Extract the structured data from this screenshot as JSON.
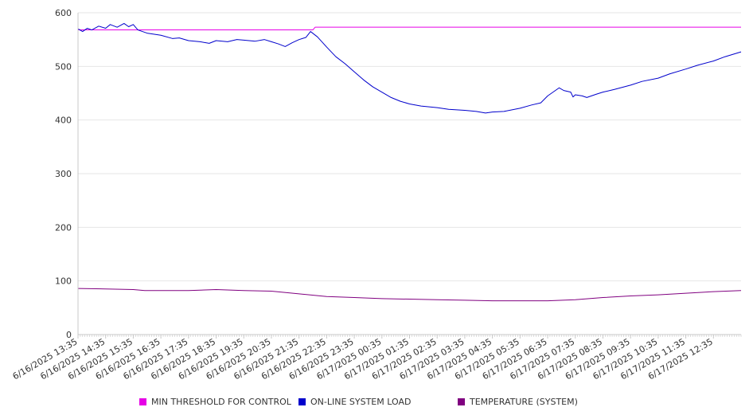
{
  "chart_data": {
    "type": "line",
    "title": "",
    "xlabel": "",
    "ylabel": "",
    "ylim": [
      0,
      600
    ],
    "yticks": [
      0,
      100,
      200,
      300,
      400,
      500,
      600
    ],
    "grid": true,
    "legend_position": "bottom",
    "x_start": "6/16/2025 13:35",
    "x_end": "6/17/2025 13:35",
    "x_tick_labels": [
      "6/16/2025 13:35",
      "6/16/2025 14:35",
      "6/16/2025 15:35",
      "6/16/2025 16:35",
      "6/16/2025 17:35",
      "6/16/2025 18:35",
      "6/16/2025 19:35",
      "6/16/2025 20:35",
      "6/16/2025 21:35",
      "6/16/2025 22:35",
      "6/16/2025 23:35",
      "6/17/2025 00:35",
      "6/17/2025 01:35",
      "6/17/2025 02:35",
      "6/17/2025 03:35",
      "6/17/2025 04:35",
      "6/17/2025 05:35",
      "6/17/2025 06:35",
      "6/17/2025 07:35",
      "6/17/2025 08:35",
      "6/17/2025 09:35",
      "6/17/2025 10:35",
      "6/17/2025 11:35",
      "6/17/2025 12:35"
    ],
    "series": [
      {
        "name": "MIN THRESHOLD FOR CONTROL",
        "color": "#e600e6",
        "points": [
          [
            "6/16/2025 13:35",
            568
          ],
          [
            "6/16/2025 22:05",
            568
          ],
          [
            "6/16/2025 22:10",
            573
          ],
          [
            "6/17/2025 13:35",
            573
          ]
        ]
      },
      {
        "name": "ON-LINE SYSTEM LOAD",
        "color": "#0000cc",
        "points": [
          [
            "6/16/2025 13:35",
            570
          ],
          [
            "6/16/2025 13:45",
            565
          ],
          [
            "6/16/2025 13:55",
            571
          ],
          [
            "6/16/2025 14:05",
            568
          ],
          [
            "6/16/2025 14:20",
            575
          ],
          [
            "6/16/2025 14:35",
            571
          ],
          [
            "6/16/2025 14:45",
            578
          ],
          [
            "6/16/2025 15:00",
            573
          ],
          [
            "6/16/2025 15:15",
            580
          ],
          [
            "6/16/2025 15:25",
            574
          ],
          [
            "6/16/2025 15:35",
            578
          ],
          [
            "6/16/2025 15:45",
            568
          ],
          [
            "6/16/2025 16:05",
            562
          ],
          [
            "6/16/2025 16:35",
            558
          ],
          [
            "6/16/2025 17:00",
            552
          ],
          [
            "6/16/2025 17:15",
            553
          ],
          [
            "6/16/2025 17:35",
            548
          ],
          [
            "6/16/2025 18:00",
            546
          ],
          [
            "6/16/2025 18:20",
            543
          ],
          [
            "6/16/2025 18:35",
            548
          ],
          [
            "6/16/2025 19:00",
            546
          ],
          [
            "6/16/2025 19:20",
            550
          ],
          [
            "6/16/2025 19:35",
            549
          ],
          [
            "6/16/2025 20:00",
            547
          ],
          [
            "6/16/2025 20:20",
            550
          ],
          [
            "6/16/2025 20:35",
            546
          ],
          [
            "6/16/2025 20:50",
            542
          ],
          [
            "6/16/2025 21:05",
            537
          ],
          [
            "6/16/2025 21:20",
            544
          ],
          [
            "6/16/2025 21:35",
            550
          ],
          [
            "6/16/2025 21:50",
            554
          ],
          [
            "6/16/2025 22:00",
            565
          ],
          [
            "6/16/2025 22:15",
            555
          ],
          [
            "6/16/2025 22:35",
            536
          ],
          [
            "6/16/2025 22:55",
            518
          ],
          [
            "6/16/2025 23:15",
            505
          ],
          [
            "6/16/2025 23:35",
            490
          ],
          [
            "6/16/2025 23:55",
            475
          ],
          [
            "6/17/2025 00:15",
            462
          ],
          [
            "6/17/2025 00:35",
            452
          ],
          [
            "6/17/2025 00:55",
            442
          ],
          [
            "6/17/2025 01:15",
            435
          ],
          [
            "6/17/2025 01:35",
            430
          ],
          [
            "6/17/2025 02:00",
            426
          ],
          [
            "6/17/2025 02:35",
            423
          ],
          [
            "6/17/2025 03:00",
            420
          ],
          [
            "6/17/2025 03:35",
            418
          ],
          [
            "6/17/2025 04:00",
            416
          ],
          [
            "6/17/2025 04:20",
            413
          ],
          [
            "6/17/2025 04:35",
            415
          ],
          [
            "6/17/2025 05:00",
            416
          ],
          [
            "6/17/2025 05:35",
            422
          ],
          [
            "6/17/2025 06:00",
            428
          ],
          [
            "6/17/2025 06:20",
            432
          ],
          [
            "6/17/2025 06:35",
            445
          ],
          [
            "6/17/2025 07:00",
            460
          ],
          [
            "6/17/2025 07:10",
            455
          ],
          [
            "6/17/2025 07:25",
            452
          ],
          [
            "6/17/2025 07:30",
            443
          ],
          [
            "6/17/2025 07:35",
            447
          ],
          [
            "6/17/2025 07:50",
            445
          ],
          [
            "6/17/2025 08:00",
            442
          ],
          [
            "6/17/2025 08:20",
            448
          ],
          [
            "6/17/2025 08:35",
            452
          ],
          [
            "6/17/2025 09:00",
            457
          ],
          [
            "6/17/2025 09:35",
            465
          ],
          [
            "6/17/2025 10:00",
            472
          ],
          [
            "6/17/2025 10:35",
            478
          ],
          [
            "6/17/2025 11:00",
            486
          ],
          [
            "6/17/2025 11:35",
            495
          ],
          [
            "6/17/2025 12:00",
            502
          ],
          [
            "6/17/2025 12:35",
            510
          ],
          [
            "6/17/2025 13:00",
            518
          ],
          [
            "6/17/2025 13:35",
            527
          ]
        ]
      },
      {
        "name": "TEMPERATURE (SYSTEM)",
        "color": "#800080",
        "points": [
          [
            "6/16/2025 13:35",
            86
          ],
          [
            "6/16/2025 14:35",
            85
          ],
          [
            "6/16/2025 15:35",
            84
          ],
          [
            "6/16/2025 16:00",
            82
          ],
          [
            "6/16/2025 17:35",
            82
          ],
          [
            "6/16/2025 18:35",
            84
          ],
          [
            "6/16/2025 19:35",
            82
          ],
          [
            "6/16/2025 20:35",
            81
          ],
          [
            "6/16/2025 21:35",
            76
          ],
          [
            "6/16/2025 22:35",
            71
          ],
          [
            "6/16/2025 23:35",
            69
          ],
          [
            "6/17/2025 00:35",
            67
          ],
          [
            "6/17/2025 01:35",
            66
          ],
          [
            "6/17/2025 02:35",
            65
          ],
          [
            "6/17/2025 03:35",
            64
          ],
          [
            "6/17/2025 04:35",
            63
          ],
          [
            "6/17/2025 05:35",
            63
          ],
          [
            "6/17/2025 06:35",
            63
          ],
          [
            "6/17/2025 07:35",
            65
          ],
          [
            "6/17/2025 08:35",
            69
          ],
          [
            "6/17/2025 09:35",
            72
          ],
          [
            "6/17/2025 10:35",
            74
          ],
          [
            "6/17/2025 11:35",
            77
          ],
          [
            "6/17/2025 12:35",
            80
          ],
          [
            "6/17/2025 13:35",
            82
          ]
        ]
      }
    ]
  },
  "legend": {
    "items": [
      {
        "label": "MIN THRESHOLD FOR CONTROL",
        "color": "#e600e6"
      },
      {
        "label": "ON-LINE SYSTEM LOAD",
        "color": "#0000cc"
      },
      {
        "label": "TEMPERATURE (SYSTEM)",
        "color": "#800080"
      }
    ]
  }
}
